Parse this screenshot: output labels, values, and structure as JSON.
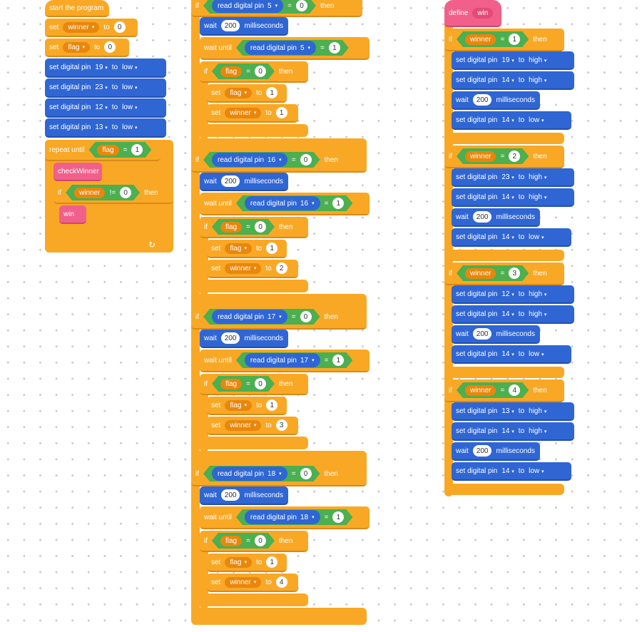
{
  "colors": {
    "control": "#f9a825",
    "pin_io": "#2f66d4",
    "custom_block": "#f0608a",
    "operator": "#4caf50",
    "variable": "#e8870c"
  },
  "icons": {
    "loop_arrow": "rotate-arrow-icon",
    "dropdown": "caret-down-icon"
  },
  "kw": {
    "set": "set",
    "to": "to",
    "then": "then",
    "if": "if",
    "wait": "wait",
    "ms": "milliseconds",
    "wait_until": "wait until",
    "repeat_until": "repeat until",
    "set_pin": "set digital pin",
    "read_pin": "read digital pin",
    "eq": "=",
    "neq": "!=",
    "low": "low",
    "high": "high",
    "caret": "▾",
    "loop": "↻"
  },
  "script1": {
    "hat": "start the program",
    "var_winner": "winner",
    "var_flag": "flag",
    "init_winner": "0",
    "init_flag": "0",
    "pins": [
      "19",
      "23",
      "12",
      "13"
    ],
    "repeat_flag_val": "1",
    "call_check": "checkWinner",
    "if_val": "0",
    "call_win": "win"
  },
  "script2": {
    "top_pin": "5",
    "top_val": "0",
    "wait_ms": "200",
    "sections": [
      {
        "pin": "5",
        "pin_val": "1",
        "flag_val": "0",
        "set_flag": "1",
        "set_winner": "1"
      },
      {
        "pin": "16",
        "pin_val": "1",
        "flag_val": "0",
        "set_flag": "1",
        "set_winner": "2",
        "if_val": "0"
      },
      {
        "pin": "17",
        "pin_val": "1",
        "flag_val": "0",
        "set_flag": "1",
        "set_winner": "3",
        "if_val": "0"
      },
      {
        "pin": "18",
        "pin_val": "1",
        "flag_val": "0",
        "set_flag": "1",
        "set_winner": "4",
        "if_val": "0"
      }
    ]
  },
  "script3": {
    "hat_define": "define",
    "hat_name": "win",
    "wait_ms": "200",
    "blocks": [
      {
        "winner": "1",
        "pin": "19"
      },
      {
        "winner": "2",
        "pin": "23"
      },
      {
        "winner": "3",
        "pin": "12"
      },
      {
        "winner": "4",
        "pin": "13"
      }
    ],
    "buzzer_pin": "14"
  }
}
